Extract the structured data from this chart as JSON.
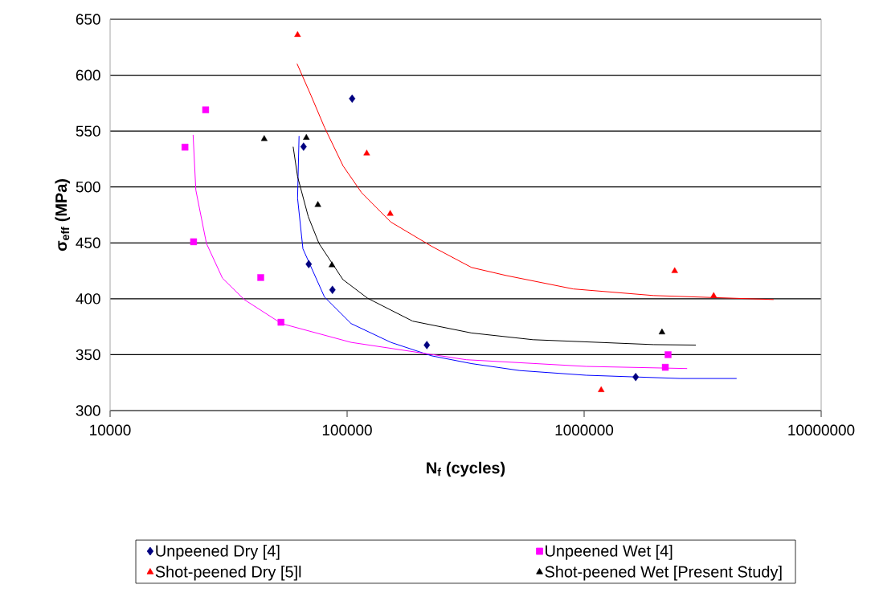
{
  "chart_data": {
    "type": "scatter",
    "xlabel": "N$_{f}$ (cycles)",
    "ylabel": "σ$_{eff}$ (MPa)",
    "log": "x",
    "grid": "y",
    "legend": "bottom",
    "xlim": [
      10000,
      10000000
    ],
    "xticks": [
      10000,
      100000,
      1000000,
      10000000
    ],
    "ylim": [
      300,
      650
    ],
    "yticks": [
      300,
      350,
      400,
      450,
      500,
      550,
      600,
      650
    ],
    "series": [
      {
        "name": "Unpeened Dry [4]",
        "color": "#000080",
        "marker": "diamond",
        "x": [
          105000,
          65500,
          68900,
          86700,
          217000,
          1650000
        ],
        "values": [
          579,
          536,
          431,
          408,
          358.6,
          330
        ]
      },
      {
        "name": "Unpeened Wet [4]",
        "color": "#ff00ff",
        "marker": "square",
        "x": [
          25300,
          20700,
          22500,
          43200,
          52600,
          2260000,
          2200000
        ],
        "values": [
          569,
          535.6,
          451,
          419,
          379,
          350,
          338.7
        ]
      },
      {
        "name": "Shot-peened Dry [5]l",
        "color": "#ff0000",
        "marker": "triangle",
        "x": [
          61800,
          121000,
          152000,
          2410000,
          3520000,
          1180000
        ],
        "values": [
          636,
          530,
          476,
          424.8,
          402.6,
          318.4
        ]
      },
      {
        "name": "Shot-peened Wet [Present Study]",
        "color": "#000000",
        "marker": "triangle",
        "x": [
          44700,
          67300,
          75300,
          86300,
          2130000
        ],
        "values": [
          543,
          544,
          484,
          430,
          370
        ]
      },
      {
        "type": "line",
        "color": "#0000ff",
        "marker": "none",
        "x": [
          62700,
          61800,
          65100,
          80200,
          104000,
          153000,
          227000,
          335000,
          535000,
          1020000,
          2550000,
          4400000
        ],
        "values": [
          545.6,
          490,
          444.7,
          401.7,
          377.8,
          361,
          349,
          342,
          335.8,
          331.6,
          328.7,
          328.7
        ]
      },
      {
        "type": "line",
        "color": "#ff00ff",
        "marker": "none",
        "x": [
          22400,
          23000,
          25500,
          29800,
          36800,
          52900,
          104000,
          227000,
          318000,
          1020000,
          2720000
        ],
        "values": [
          546.6,
          497.3,
          449.5,
          418.4,
          399.3,
          377.8,
          361,
          350.2,
          345.5,
          339.5,
          337.6
        ]
      },
      {
        "type": "line",
        "color": "#ff0000",
        "marker": "none",
        "x": [
          61500,
          70300,
          80200,
          96200,
          115000,
          153000,
          227000,
          335000,
          469000,
          899000,
          1960000,
          6300000
        ],
        "values": [
          610.2,
          582.2,
          553.5,
          518.8,
          495,
          468.6,
          447,
          428,
          420.8,
          408.8,
          402.9,
          399.3
        ]
      },
      {
        "type": "line",
        "color": "#000000",
        "marker": "none",
        "x": [
          59200,
          61800,
          68600,
          76100,
          96000,
          122000,
          189000,
          335000,
          608000,
          1960000,
          2960000
        ],
        "values": [
          536,
          509.3,
          473.4,
          449.5,
          417.2,
          400.5,
          380,
          369.4,
          363.4,
          359,
          358.6
        ]
      }
    ]
  }
}
